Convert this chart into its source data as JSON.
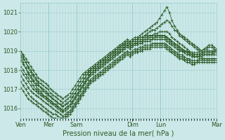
{
  "title": "Pression niveau de la mer( hPa )",
  "background_color": "#cce8e8",
  "grid_color": "#99cccc",
  "line_color": "#2d5a27",
  "ylim": [
    1015.5,
    1021.5
  ],
  "yticks": [
    1016,
    1017,
    1018,
    1019,
    1020,
    1021
  ],
  "day_labels": [
    "Ven",
    "Mer",
    "Sam",
    "Dim",
    "Lun",
    "Mar"
  ],
  "day_positions": [
    0.0,
    0.143,
    0.286,
    0.571,
    0.714,
    1.0
  ],
  "n_points": 80,
  "series": [
    [
      1019.0,
      1018.8,
      1018.6,
      1018.4,
      1018.2,
      1018.0,
      1017.8,
      1017.6,
      1017.5,
      1017.4,
      1017.3,
      1017.2,
      1017.0,
      1016.9,
      1016.8,
      1016.7,
      1016.6,
      1016.5,
      1016.6,
      1016.7,
      1016.8,
      1017.0,
      1017.2,
      1017.4,
      1017.6,
      1017.8,
      1017.9,
      1018.0,
      1018.1,
      1018.2,
      1018.3,
      1018.4,
      1018.5,
      1018.6,
      1018.7,
      1018.8,
      1018.9,
      1019.0,
      1019.1,
      1019.2,
      1019.3,
      1019.4,
      1019.5,
      1019.6,
      1019.5,
      1019.6,
      1019.7,
      1019.7,
      1019.8,
      1019.9,
      1020.0,
      1020.1,
      1020.2,
      1020.3,
      1020.4,
      1020.5,
      1020.7,
      1020.9,
      1021.1,
      1021.3,
      1021.0,
      1020.6,
      1020.3,
      1020.1,
      1019.9,
      1019.8,
      1019.7,
      1019.6,
      1019.5,
      1019.4,
      1019.3,
      1019.2,
      1019.1,
      1019.0,
      1019.1,
      1019.2,
      1019.3,
      1019.3,
      1019.2,
      1019.1
    ],
    [
      1018.8,
      1018.6,
      1018.4,
      1018.2,
      1018.0,
      1017.8,
      1017.6,
      1017.4,
      1017.3,
      1017.2,
      1017.1,
      1017.0,
      1016.8,
      1016.7,
      1016.6,
      1016.5,
      1016.4,
      1016.3,
      1016.4,
      1016.5,
      1016.6,
      1016.8,
      1017.0,
      1017.2,
      1017.4,
      1017.6,
      1017.8,
      1017.9,
      1018.0,
      1018.1,
      1018.2,
      1018.3,
      1018.4,
      1018.5,
      1018.6,
      1018.7,
      1018.8,
      1018.9,
      1019.0,
      1019.1,
      1019.2,
      1019.3,
      1019.4,
      1019.5,
      1019.4,
      1019.5,
      1019.6,
      1019.6,
      1019.7,
      1019.7,
      1019.8,
      1019.9,
      1020.0,
      1020.1,
      1020.1,
      1020.2,
      1020.3,
      1020.4,
      1020.5,
      1020.6,
      1020.5,
      1020.3,
      1020.1,
      1020.0,
      1019.8,
      1019.7,
      1019.6,
      1019.5,
      1019.4,
      1019.3,
      1019.2,
      1019.1,
      1019.0,
      1019.0,
      1019.1,
      1019.1,
      1019.2,
      1019.2,
      1019.1,
      1019.0
    ],
    [
      1018.5,
      1018.3,
      1018.1,
      1017.9,
      1017.7,
      1017.5,
      1017.3,
      1017.2,
      1017.1,
      1017.0,
      1016.9,
      1016.8,
      1016.6,
      1016.5,
      1016.4,
      1016.3,
      1016.2,
      1016.1,
      1016.2,
      1016.3,
      1016.4,
      1016.6,
      1016.8,
      1017.0,
      1017.2,
      1017.4,
      1017.6,
      1017.8,
      1017.9,
      1018.0,
      1018.1,
      1018.2,
      1018.3,
      1018.4,
      1018.5,
      1018.6,
      1018.7,
      1018.8,
      1018.9,
      1019.0,
      1019.1,
      1019.2,
      1019.3,
      1019.4,
      1019.3,
      1019.4,
      1019.5,
      1019.5,
      1019.6,
      1019.6,
      1019.7,
      1019.7,
      1019.8,
      1019.8,
      1019.9,
      1019.9,
      1020.0,
      1020.0,
      1020.0,
      1020.0,
      1019.9,
      1019.7,
      1019.6,
      1019.5,
      1019.4,
      1019.3,
      1019.2,
      1019.1,
      1019.0,
      1018.9,
      1018.9,
      1018.9,
      1018.9,
      1018.9,
      1019.0,
      1019.0,
      1019.0,
      1019.0,
      1019.0,
      1019.0
    ],
    [
      1018.2,
      1018.0,
      1017.8,
      1017.6,
      1017.4,
      1017.2,
      1017.0,
      1016.9,
      1016.8,
      1016.7,
      1016.6,
      1016.5,
      1016.4,
      1016.3,
      1016.2,
      1016.1,
      1016.0,
      1015.9,
      1016.0,
      1016.1,
      1016.2,
      1016.4,
      1016.6,
      1016.8,
      1017.0,
      1017.2,
      1017.4,
      1017.6,
      1017.8,
      1017.9,
      1018.0,
      1018.1,
      1018.2,
      1018.3,
      1018.4,
      1018.5,
      1018.6,
      1018.7,
      1018.8,
      1018.9,
      1019.0,
      1019.1,
      1019.2,
      1019.3,
      1019.2,
      1019.3,
      1019.4,
      1019.4,
      1019.5,
      1019.5,
      1019.6,
      1019.6,
      1019.7,
      1019.7,
      1019.7,
      1019.8,
      1019.8,
      1019.8,
      1019.8,
      1019.7,
      1019.6,
      1019.5,
      1019.4,
      1019.3,
      1019.2,
      1019.1,
      1019.0,
      1019.0,
      1018.9,
      1018.8,
      1018.8,
      1018.8,
      1018.8,
      1018.8,
      1018.9,
      1018.9,
      1018.9,
      1018.9,
      1018.9,
      1018.9
    ],
    [
      1018.0,
      1017.8,
      1017.6,
      1017.4,
      1017.2,
      1017.0,
      1016.9,
      1016.8,
      1016.7,
      1016.6,
      1016.5,
      1016.4,
      1016.3,
      1016.2,
      1016.1,
      1016.0,
      1015.9,
      1015.8,
      1015.9,
      1016.0,
      1016.1,
      1016.3,
      1016.5,
      1016.7,
      1016.9,
      1017.1,
      1017.3,
      1017.5,
      1017.7,
      1017.8,
      1017.9,
      1018.0,
      1018.1,
      1018.2,
      1018.3,
      1018.4,
      1018.5,
      1018.6,
      1018.7,
      1018.8,
      1018.9,
      1019.0,
      1019.1,
      1019.2,
      1019.1,
      1019.2,
      1019.3,
      1019.3,
      1019.4,
      1019.4,
      1019.5,
      1019.5,
      1019.5,
      1019.6,
      1019.6,
      1019.6,
      1019.6,
      1019.6,
      1019.6,
      1019.5,
      1019.4,
      1019.3,
      1019.2,
      1019.1,
      1019.0,
      1019.0,
      1018.9,
      1018.8,
      1018.8,
      1018.7,
      1018.7,
      1018.7,
      1018.7,
      1018.7,
      1018.8,
      1018.8,
      1018.8,
      1018.8,
      1018.8,
      1018.8
    ],
    [
      1017.7,
      1017.5,
      1017.3,
      1017.1,
      1016.9,
      1016.8,
      1016.7,
      1016.6,
      1016.5,
      1016.4,
      1016.3,
      1016.2,
      1016.1,
      1016.0,
      1015.9,
      1015.8,
      1015.7,
      1015.6,
      1015.7,
      1015.8,
      1015.9,
      1016.1,
      1016.3,
      1016.5,
      1016.7,
      1016.9,
      1017.1,
      1017.3,
      1017.5,
      1017.6,
      1017.7,
      1017.8,
      1017.9,
      1018.0,
      1018.1,
      1018.2,
      1018.3,
      1018.4,
      1018.5,
      1018.6,
      1018.7,
      1018.8,
      1018.9,
      1019.0,
      1018.9,
      1019.0,
      1019.1,
      1019.1,
      1019.2,
      1019.2,
      1019.3,
      1019.3,
      1019.3,
      1019.4,
      1019.4,
      1019.4,
      1019.4,
      1019.4,
      1019.4,
      1019.3,
      1019.2,
      1019.1,
      1019.0,
      1018.9,
      1018.8,
      1018.8,
      1018.7,
      1018.6,
      1018.6,
      1018.5,
      1018.5,
      1018.5,
      1018.6,
      1018.6,
      1018.6,
      1018.6,
      1018.6,
      1018.6,
      1018.6,
      1018.6
    ],
    [
      1017.4,
      1017.2,
      1017.0,
      1016.8,
      1016.6,
      1016.5,
      1016.4,
      1016.3,
      1016.2,
      1016.1,
      1016.0,
      1015.9,
      1015.8,
      1015.7,
      1015.7,
      1015.6,
      1015.5,
      1015.5,
      1015.6,
      1015.7,
      1015.8,
      1016.0,
      1016.2,
      1016.4,
      1016.6,
      1016.8,
      1017.0,
      1017.2,
      1017.4,
      1017.5,
      1017.6,
      1017.7,
      1017.8,
      1017.9,
      1018.0,
      1018.1,
      1018.2,
      1018.3,
      1018.4,
      1018.5,
      1018.6,
      1018.7,
      1018.8,
      1018.9,
      1018.8,
      1018.9,
      1019.0,
      1019.0,
      1019.1,
      1019.1,
      1019.2,
      1019.2,
      1019.2,
      1019.3,
      1019.3,
      1019.3,
      1019.3,
      1019.3,
      1019.3,
      1019.2,
      1019.1,
      1019.0,
      1018.9,
      1018.8,
      1018.7,
      1018.7,
      1018.6,
      1018.5,
      1018.5,
      1018.4,
      1018.4,
      1018.4,
      1018.5,
      1018.5,
      1018.5,
      1018.5,
      1018.5,
      1018.5,
      1018.5,
      1018.5
    ],
    [
      1017.1,
      1016.9,
      1016.7,
      1016.5,
      1016.4,
      1016.3,
      1016.2,
      1016.1,
      1016.0,
      1015.9,
      1015.8,
      1015.7,
      1015.6,
      1015.5,
      1015.5,
      1015.4,
      1015.4,
      1015.4,
      1015.5,
      1015.6,
      1015.7,
      1015.9,
      1016.1,
      1016.3,
      1016.5,
      1016.7,
      1016.9,
      1017.1,
      1017.3,
      1017.4,
      1017.5,
      1017.6,
      1017.7,
      1017.8,
      1017.9,
      1018.0,
      1018.1,
      1018.2,
      1018.3,
      1018.4,
      1018.5,
      1018.6,
      1018.7,
      1018.8,
      1018.7,
      1018.8,
      1018.9,
      1018.9,
      1019.0,
      1019.0,
      1019.1,
      1019.1,
      1019.1,
      1019.2,
      1019.2,
      1019.2,
      1019.2,
      1019.2,
      1019.2,
      1019.1,
      1019.0,
      1018.9,
      1018.8,
      1018.7,
      1018.6,
      1018.6,
      1018.5,
      1018.4,
      1018.4,
      1018.3,
      1018.3,
      1018.4,
      1018.4,
      1018.4,
      1018.4,
      1018.4,
      1018.4,
      1018.4,
      1018.4,
      1018.4
    ],
    [
      1019.0,
      1018.7,
      1018.4,
      1018.1,
      1017.9,
      1017.7,
      1017.5,
      1017.3,
      1017.1,
      1016.9,
      1016.8,
      1016.7,
      1016.6,
      1016.5,
      1016.4,
      1016.3,
      1016.2,
      1016.1,
      1016.2,
      1016.3,
      1016.4,
      1016.6,
      1016.8,
      1017.0,
      1017.2,
      1017.4,
      1017.6,
      1017.8,
      1018.0,
      1018.1,
      1018.2,
      1018.3,
      1018.4,
      1018.5,
      1018.6,
      1018.7,
      1018.8,
      1018.9,
      1019.0,
      1019.1,
      1019.2,
      1019.3,
      1019.4,
      1019.5,
      1019.4,
      1019.5,
      1019.6,
      1019.6,
      1019.7,
      1019.7,
      1019.8,
      1019.8,
      1019.8,
      1019.8,
      1019.8,
      1019.8,
      1019.8,
      1019.8,
      1019.8,
      1019.7,
      1019.6,
      1019.5,
      1019.4,
      1019.3,
      1019.2,
      1019.1,
      1019.0,
      1019.0,
      1018.9,
      1018.9,
      1018.8,
      1018.8,
      1018.8,
      1018.9,
      1018.9,
      1018.9,
      1018.9,
      1018.9,
      1019.0,
      1019.0
    ],
    [
      1018.7,
      1018.4,
      1018.1,
      1017.8,
      1017.6,
      1017.4,
      1017.2,
      1017.0,
      1016.9,
      1016.7,
      1016.6,
      1016.5,
      1016.4,
      1016.3,
      1016.2,
      1016.1,
      1016.0,
      1015.9,
      1016.0,
      1016.1,
      1016.2,
      1016.4,
      1016.6,
      1016.8,
      1017.0,
      1017.2,
      1017.4,
      1017.6,
      1017.8,
      1017.9,
      1018.0,
      1018.1,
      1018.2,
      1018.3,
      1018.4,
      1018.5,
      1018.6,
      1018.7,
      1018.8,
      1018.9,
      1019.0,
      1019.1,
      1019.2,
      1019.3,
      1019.2,
      1019.3,
      1019.4,
      1019.4,
      1019.5,
      1019.5,
      1019.6,
      1019.6,
      1019.6,
      1019.6,
      1019.7,
      1019.7,
      1019.7,
      1019.7,
      1019.7,
      1019.6,
      1019.5,
      1019.4,
      1019.3,
      1019.2,
      1019.1,
      1019.0,
      1019.0,
      1018.9,
      1018.8,
      1018.8,
      1018.7,
      1018.7,
      1018.7,
      1018.8,
      1018.8,
      1018.8,
      1018.8,
      1018.8,
      1018.9,
      1018.9
    ]
  ]
}
